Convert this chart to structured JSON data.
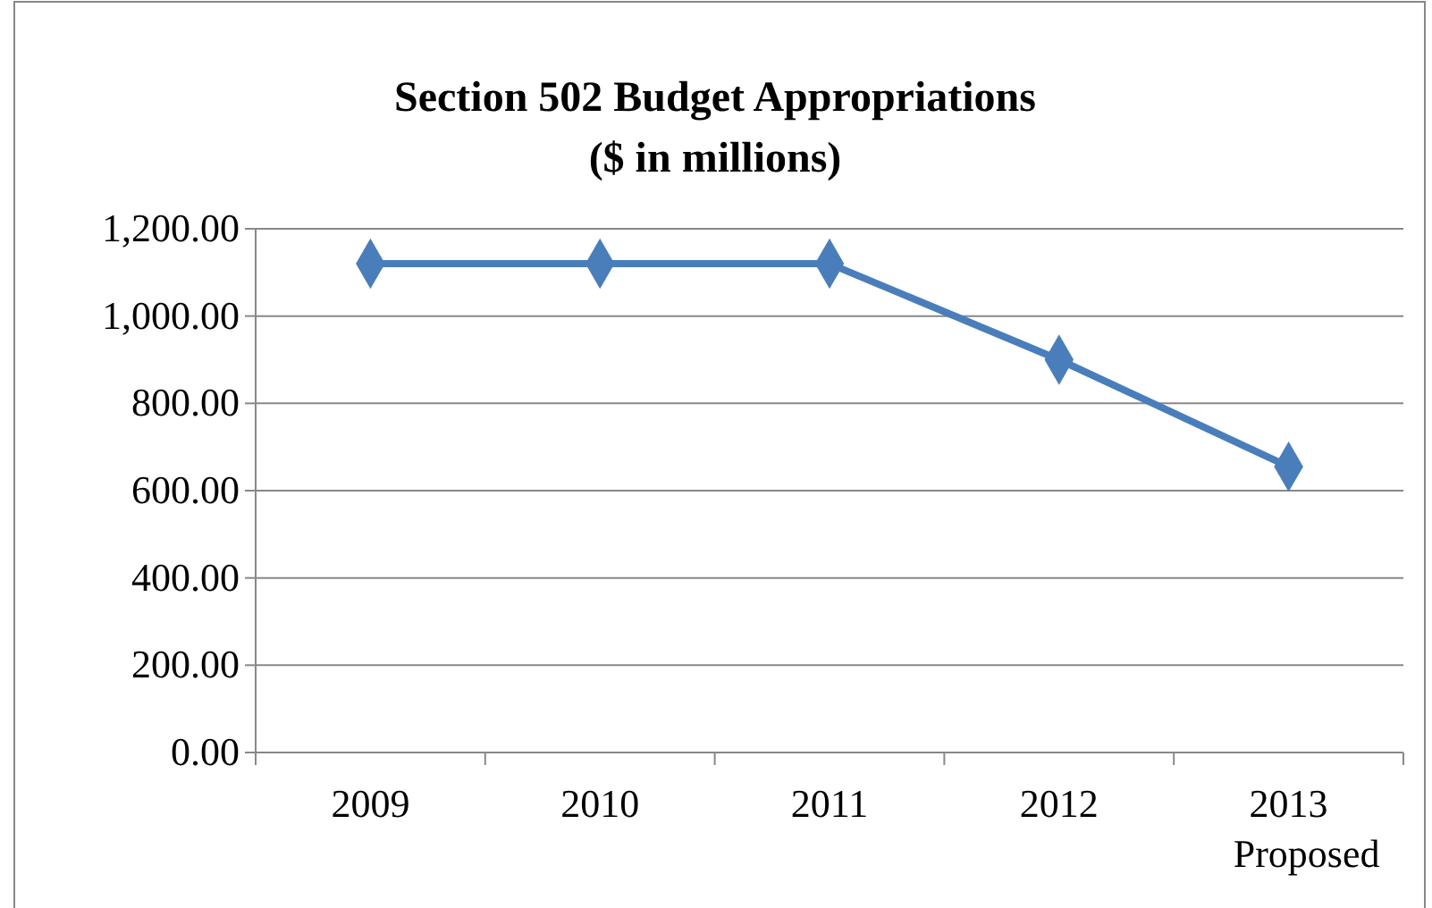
{
  "chart_data": {
    "type": "line",
    "title": "Section 502 Budget Appropriations",
    "subtitle": "($ in millions)",
    "categories": [
      "2009",
      "2010",
      "2011",
      "2012",
      "2013 Proposed"
    ],
    "series": [
      {
        "color": "#4a7ebb",
        "values": [
          1120,
          1120,
          1120,
          900,
          655
        ]
      }
    ],
    "ylim": [
      0,
      1200
    ],
    "yticks": [
      {
        "value": 0,
        "label": "0.00"
      },
      {
        "value": 200,
        "label": "200.00"
      },
      {
        "value": 400,
        "label": "400.00"
      },
      {
        "value": 600,
        "label": "600.00"
      },
      {
        "value": 800,
        "label": "800.00"
      },
      {
        "value": 1000,
        "label": "1,000.00"
      },
      {
        "value": 1200,
        "label": "1,200.00"
      }
    ],
    "grid": "y",
    "marker": "diamond",
    "line_style": "solid"
  }
}
